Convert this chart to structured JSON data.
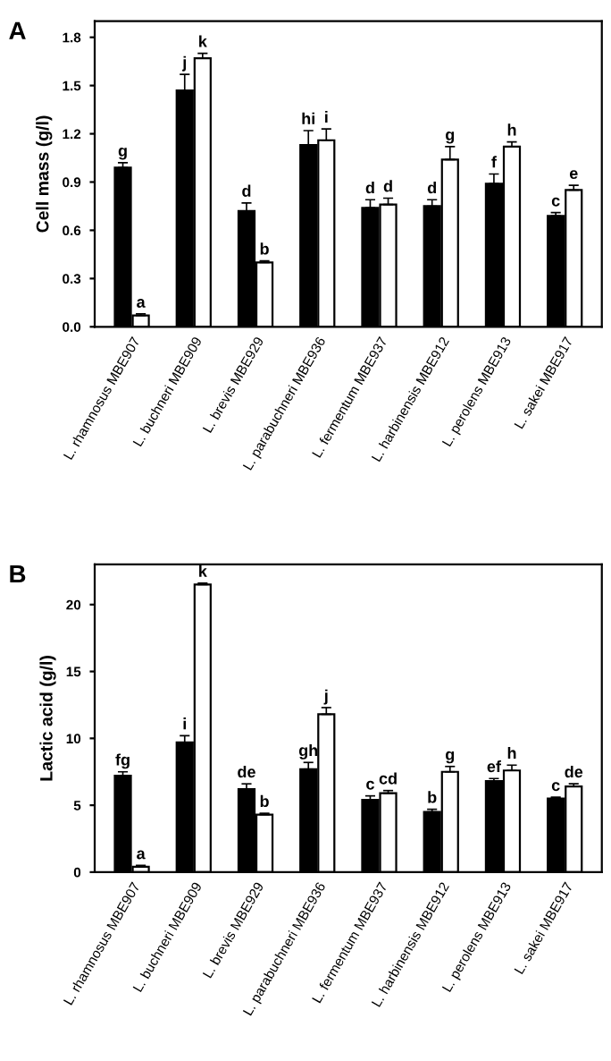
{
  "chart_data": [
    {
      "type": "bar",
      "title": "A",
      "ylabel": "Cell mass (g/l)",
      "categories": [
        "L. rhamnosus MBE907",
        "L. buchneri MBE909",
        "L. brevis MBE929",
        "L. parabuchneri MBE936",
        "L. fermentum MBE937",
        "L. harbinensis MBE912",
        "L. perolens MBE913",
        "L. sakei MBE917"
      ],
      "series": [
        {
          "color": "#000000",
          "values": [
            0.99,
            1.47,
            0.72,
            1.13,
            0.74,
            0.75,
            0.89,
            0.69
          ],
          "errors": [
            0.03,
            0.1,
            0.05,
            0.09,
            0.05,
            0.04,
            0.06,
            0.02
          ],
          "value_labels": [
            "g",
            "j",
            "d",
            "hi",
            "d",
            "d",
            "f",
            "c"
          ]
        },
        {
          "color": "#ffffff",
          "values": [
            0.07,
            1.67,
            0.4,
            1.16,
            0.76,
            1.04,
            1.12,
            0.85
          ],
          "errors": [
            0.01,
            0.03,
            0.01,
            0.07,
            0.04,
            0.08,
            0.03,
            0.03
          ],
          "value_labels": [
            "a",
            "k",
            "b",
            "i",
            "d",
            "g",
            "h",
            "e"
          ]
        }
      ],
      "ylim": [
        0,
        1.9
      ],
      "yticks": [
        {
          "value": 0,
          "label": "0.0"
        },
        0.3,
        0.6,
        0.9,
        1.2,
        1.5,
        1.8
      ],
      "grid": false
    },
    {
      "type": "bar",
      "title": "B",
      "ylabel": "Lactic acid (g/l)",
      "categories": [
        "L. rhamnosus MBE907",
        "L. buchneri MBE909",
        "L. brevis MBE929",
        "L. parabuchneri MBE936",
        "L. fermentum MBE937",
        "L. harbinensis MBE912",
        "L. perolens MBE913",
        "L. sakei MBE917"
      ],
      "series": [
        {
          "color": "#000000",
          "values": [
            7.2,
            9.7,
            6.2,
            7.7,
            5.4,
            4.5,
            6.8,
            5.5
          ],
          "errors": [
            0.3,
            0.5,
            0.4,
            0.5,
            0.3,
            0.2,
            0.2,
            0.1
          ],
          "value_labels": [
            "fg",
            "i",
            "de",
            "gh",
            "c",
            "b",
            "ef",
            "c"
          ]
        },
        {
          "color": "#ffffff",
          "values": [
            0.4,
            21.5,
            4.3,
            11.8,
            5.9,
            7.5,
            7.6,
            6.4
          ],
          "errors": [
            0.1,
            0.1,
            0.1,
            0.5,
            0.2,
            0.4,
            0.4,
            0.2
          ],
          "value_labels": [
            "a",
            "k",
            "b",
            "j",
            "cd",
            "g",
            "h",
            "de"
          ]
        }
      ],
      "ylim": [
        0,
        23
      ],
      "yticks": [
        0,
        5,
        10,
        15,
        20
      ],
      "grid": false
    }
  ]
}
